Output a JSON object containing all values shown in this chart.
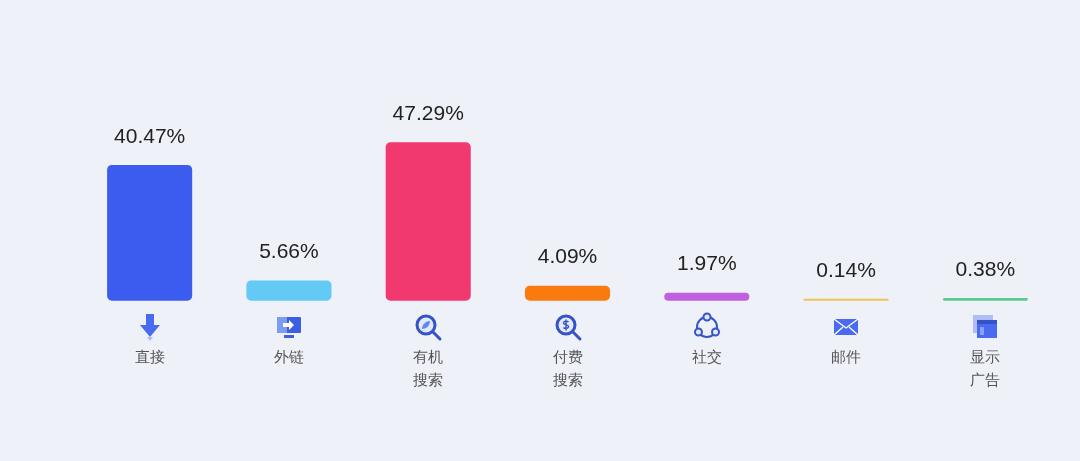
{
  "chart_data": {
    "type": "bar",
    "categories": [
      "直接",
      "外链",
      "有机搜索",
      "付费搜索",
      "社交",
      "邮件",
      "显示广告"
    ],
    "values": [
      40.47,
      5.66,
      47.29,
      4.09,
      1.97,
      0.14,
      0.38
    ],
    "value_labels": [
      "40.47%",
      "5.66%",
      "47.29%",
      "4.09%",
      "1.97%",
      "0.14%",
      "0.38%"
    ],
    "colors": [
      "#3c5cf0",
      "#63caf5",
      "#f2396f",
      "#f97b10",
      "#c060e0",
      "#f0c453",
      "#5cc990"
    ]
  }
}
